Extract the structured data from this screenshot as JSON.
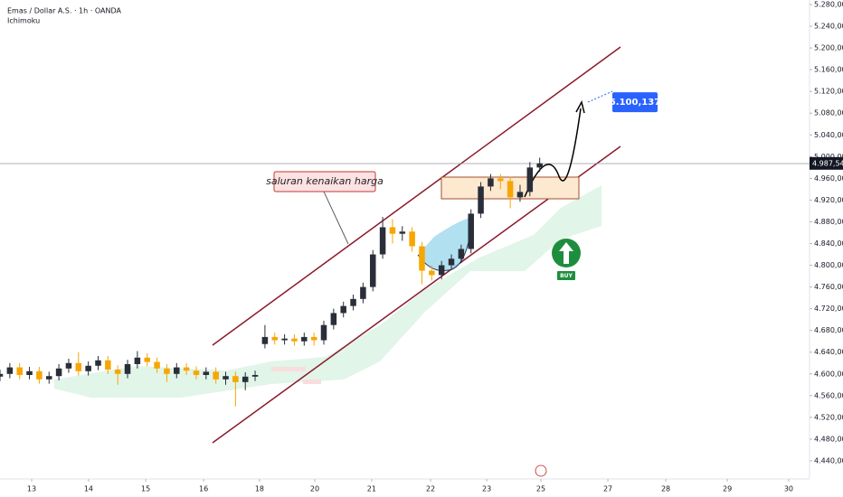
{
  "chart_data": {
    "type": "candlestick",
    "title": "Emas / Dollar A.S. · 1h · OANDA",
    "subtitle": "Ichimoku",
    "x": [
      0,
      4,
      8,
      12,
      16,
      20,
      24,
      28,
      32,
      36,
      40,
      44,
      48,
      52,
      56,
      60,
      64,
      68,
      72,
      76,
      80,
      84,
      88,
      92,
      96,
      100,
      104,
      108,
      112,
      116,
      120,
      124,
      128,
      132,
      136,
      140,
      144,
      148,
      152,
      156,
      160,
      164,
      168,
      172,
      176,
      180,
      184,
      188,
      192,
      196,
      200,
      204,
      208,
      212,
      216,
      220
    ],
    "open": [
      4595,
      4600,
      4612,
      4598,
      4605,
      4590,
      4596,
      4610,
      4620,
      4605,
      4615,
      4625,
      4608,
      4600,
      4618,
      4630,
      4622,
      4610,
      4600,
      4612,
      4606,
      4598,
      4604,
      4590,
      4596,
      4585,
      4595,
      4655,
      4668,
      4662,
      4665,
      4660,
      4668,
      4662,
      4690,
      4712,
      4725,
      4738,
      4760,
      4820,
      4870,
      4858,
      4862,
      4835,
      4790,
      4782,
      4800,
      4812,
      4830,
      4895,
      4945,
      4960,
      4955,
      4925,
      4935,
      4980
    ],
    "high": [
      4608,
      4620,
      4620,
      4613,
      4613,
      4604,
      4618,
      4628,
      4640,
      4623,
      4633,
      4633,
      4616,
      4626,
      4642,
      4638,
      4630,
      4618,
      4620,
      4620,
      4614,
      4612,
      4612,
      4604,
      4604,
      4603,
      4606,
      4690,
      4676,
      4673,
      4673,
      4676,
      4676,
      4698,
      4720,
      4733,
      4746,
      4768,
      4828,
      4889,
      4885,
      4872,
      4870,
      4843,
      4800,
      4808,
      4820,
      4838,
      4903,
      4953,
      4968,
      4968,
      4963,
      4948,
      4990,
      4998
    ],
    "low": [
      4587,
      4592,
      4590,
      4590,
      4582,
      4582,
      4588,
      4602,
      4597,
      4597,
      4607,
      4600,
      4580,
      4592,
      4610,
      4614,
      4602,
      4585,
      4592,
      4598,
      4590,
      4590,
      4582,
      4580,
      4540,
      4570,
      4587,
      4647,
      4654,
      4654,
      4652,
      4652,
      4652,
      4654,
      4682,
      4704,
      4717,
      4730,
      4752,
      4812,
      4840,
      4845,
      4825,
      4765,
      4772,
      4774,
      4792,
      4804,
      4822,
      4887,
      4937,
      4940,
      4905,
      4917,
      4927,
      4972
    ],
    "close": [
      4600,
      4612,
      4598,
      4605,
      4590,
      4596,
      4610,
      4620,
      4605,
      4615,
      4625,
      4608,
      4600,
      4618,
      4630,
      4622,
      4610,
      4600,
      4612,
      4606,
      4598,
      4604,
      4590,
      4596,
      4585,
      4595,
      4598,
      4668,
      4662,
      4665,
      4660,
      4668,
      4662,
      4690,
      4712,
      4725,
      4738,
      4760,
      4820,
      4870,
      4858,
      4862,
      4835,
      4790,
      4782,
      4800,
      4812,
      4830,
      4895,
      4945,
      4960,
      4955,
      4925,
      4935,
      4980,
      4987.545
    ],
    "up_color": "#2a2e39",
    "down_color": "#f7a600",
    "xlim": [
      0,
      330
    ],
    "xticks": [
      {
        "value": 12.9,
        "label": "13"
      },
      {
        "value": 36.1,
        "label": "14"
      },
      {
        "value": 59.4,
        "label": "15"
      },
      {
        "value": 83,
        "label": "16"
      },
      {
        "value": 105.8,
        "label": "18"
      },
      {
        "value": 128.3,
        "label": "20"
      },
      {
        "value": 151.5,
        "label": "21"
      },
      {
        "value": 175.5,
        "label": "22"
      },
      {
        "value": 198.4,
        "label": "23"
      },
      {
        "value": 220.5,
        "label": "25"
      },
      {
        "value": 247.8,
        "label": "27"
      },
      {
        "value": 271.4,
        "label": "28"
      },
      {
        "value": 296.5,
        "label": "29"
      },
      {
        "value": 321.5,
        "label": "30"
      }
    ],
    "ylim": [
      4406.7,
      5288.3
    ],
    "yticks": [
      {
        "value": 4440,
        "label": "4.440,000"
      },
      {
        "value": 4480,
        "label": "4.480,000"
      },
      {
        "value": 4520,
        "label": "4.520,000"
      },
      {
        "value": 4560,
        "label": "4.560,000"
      },
      {
        "value": 4600,
        "label": "4.600,000"
      },
      {
        "value": 4640,
        "label": "4.640,000"
      },
      {
        "value": 4680,
        "label": "4.680,000"
      },
      {
        "value": 4720,
        "label": "4.720,000"
      },
      {
        "value": 4760,
        "label": "4.760,000"
      },
      {
        "value": 4800,
        "label": "4.800,000"
      },
      {
        "value": 4840,
        "label": "4.840,000"
      },
      {
        "value": 4880,
        "label": "4.880,000"
      },
      {
        "value": 4920,
        "label": "4.920,000"
      },
      {
        "value": 4960,
        "label": "4.960,000"
      },
      {
        "value": 5000,
        "label": "5.000,000"
      },
      {
        "value": 5040,
        "label": "5.040,000"
      },
      {
        "value": 5080,
        "label": "5.080,000"
      },
      {
        "value": 5120,
        "label": "5.120,000"
      },
      {
        "value": 5160,
        "label": "5.160,000"
      },
      {
        "value": 5200,
        "label": "5.200,000"
      },
      {
        "value": 5240,
        "label": "5.240,000"
      },
      {
        "value": 5280,
        "label": "5.280,000"
      }
    ],
    "last_price": {
      "value": 4987.545,
      "label": "4.987,545"
    },
    "target": {
      "value": 5100.137,
      "label": "5.100,137"
    },
    "annotation": "saluran kenaikan harga",
    "signal": "BUY"
  }
}
